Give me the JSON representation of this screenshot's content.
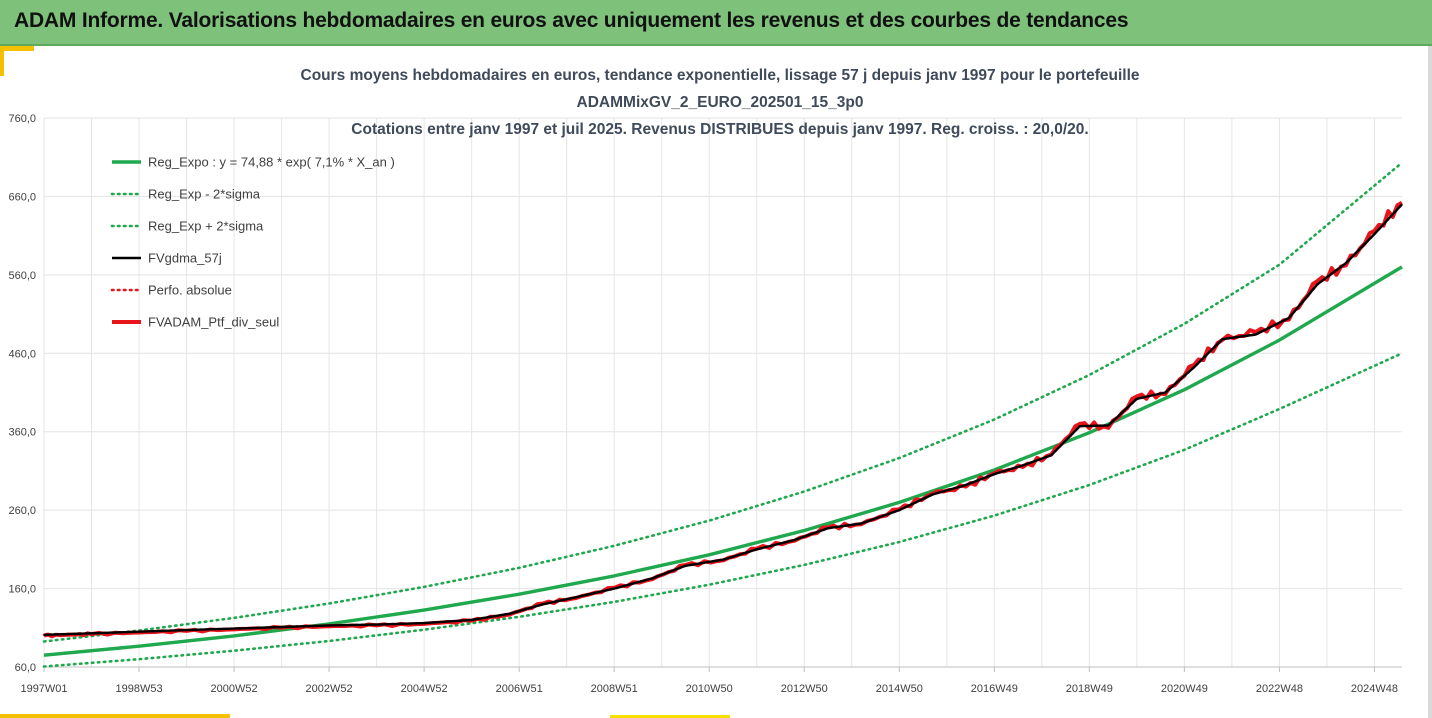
{
  "header": {
    "title": "ADAM Informe. Valorisations hebdomadaires en euros avec uniquement les revenus et des courbes de tendances"
  },
  "colors": {
    "banner": "#7dc17a",
    "accent": "#f5c000",
    "trend": "#1fa84d",
    "smooth": "#000000",
    "portfolio": "#e8141b",
    "grid": "#e3e3e3"
  },
  "chart_data": {
    "type": "line",
    "title_lines": [
      "Cours moyens hebdomadaires en euros, tendance exponentielle, lissage 57 j depuis janv 1997 pour le portefeuille",
      "ADAMMixGV_2_EURO_202501_15_3p0",
      "Cotations entre janv 1997 et juil 2025. Revenus DISTRIBUES depuis janv 1997. Reg. croiss. : 20,0/20."
    ],
    "xlabel": "",
    "ylabel": "",
    "x_range": [
      1997.0,
      2025.58
    ],
    "ylim": [
      60,
      760
    ],
    "y_ticks": [
      "60,0",
      "160,0",
      "260,0",
      "360,0",
      "460,0",
      "560,0",
      "660,0",
      "760,0"
    ],
    "x_ticks": [
      {
        "label": "1997W01",
        "x": 1997.0
      },
      {
        "label": "1998W53",
        "x": 1999.0
      },
      {
        "label": "2000W52",
        "x": 2001.0
      },
      {
        "label": "2002W52",
        "x": 2003.0
      },
      {
        "label": "2004W52",
        "x": 2005.0
      },
      {
        "label": "2006W51",
        "x": 2007.0
      },
      {
        "label": "2008W51",
        "x": 2009.0
      },
      {
        "label": "2010W50",
        "x": 2011.0
      },
      {
        "label": "2012W50",
        "x": 2013.0
      },
      {
        "label": "2014W50",
        "x": 2015.0
      },
      {
        "label": "2016W49",
        "x": 2017.0
      },
      {
        "label": "2018W49",
        "x": 2019.0
      },
      {
        "label": "2020W49",
        "x": 2021.0
      },
      {
        "label": "2022W48",
        "x": 2023.0
      },
      {
        "label": "2024W48",
        "x": 2025.0
      }
    ],
    "grid": true,
    "legend_position": "top-left",
    "series": [
      {
        "name": "Reg_Expo : y = 74,88 * exp( 7,1% *  X_an )",
        "style": "solid",
        "color": "#1fa84d",
        "x": [
          1997,
          1999,
          2001,
          2003,
          2005,
          2007,
          2009,
          2011,
          2013,
          2015,
          2017,
          2019,
          2021,
          2023,
          2025.58
        ],
        "values": [
          75,
          86.5,
          99.7,
          114.9,
          132.5,
          152.8,
          176.1,
          203.1,
          234.1,
          269.9,
          311.2,
          358.7,
          413.6,
          476.8,
          570.2
        ]
      },
      {
        "name": "Reg_Exp - 2*sigma",
        "style": "dotted",
        "color": "#1fa84d",
        "x": [
          1997,
          1999,
          2001,
          2003,
          2005,
          2007,
          2009,
          2011,
          2013,
          2015,
          2017,
          2019,
          2021,
          2023,
          2025.58
        ],
        "values": [
          60.6,
          70,
          80.8,
          93.2,
          107.5,
          124,
          143,
          164.9,
          190.2,
          219.4,
          253.1,
          292,
          337,
          389,
          460
        ]
      },
      {
        "name": "Reg_Exp + 2*sigma",
        "style": "dotted",
        "color": "#1fa84d",
        "x": [
          1997,
          1999,
          2001,
          2003,
          2005,
          2007,
          2009,
          2011,
          2013,
          2015,
          2017,
          2019,
          2021,
          2023,
          2025.58
        ],
        "values": [
          92.5,
          106.6,
          122.6,
          141,
          162.1,
          186.5,
          214.5,
          246.7,
          283.8,
          326.5,
          375.6,
          432.3,
          497.6,
          573,
          703
        ]
      },
      {
        "name": "FVgdma_57j",
        "style": "solid-thin",
        "color": "#000000",
        "x": [
          1997,
          1998,
          1999,
          2000,
          2001,
          2002,
          2003,
          2004,
          2005,
          2006,
          2006.8,
          2007.5,
          2008.2,
          2009,
          2009.8,
          2010.5,
          2011.3,
          2012,
          2012.8,
          2013.5,
          2014.2,
          2015,
          2015.7,
          2016.4,
          2017,
          2017.6,
          2018.2,
          2018.8,
          2019.4,
          2020,
          2020.6,
          2021.2,
          2021.8,
          2022.5,
          2023.2,
          2023.8,
          2024.4,
          2025,
          2025.58
        ],
        "values": [
          101,
          103,
          105,
          107,
          109,
          111,
          113,
          114,
          116,
          120,
          128,
          140,
          149,
          160,
          173,
          189,
          197,
          210,
          222,
          237,
          243,
          260,
          280,
          292,
          306,
          317,
          330,
          367,
          368,
          402,
          410,
          442,
          478,
          484,
          505,
          548,
          575,
          612,
          650
        ]
      },
      {
        "name": "Perfo. absolue",
        "style": "dotted",
        "color": "#e8141b",
        "x": [
          1997,
          1998,
          1999,
          2000,
          2001,
          2002,
          2003,
          2004,
          2005,
          2006,
          2006.8,
          2007.5,
          2008.2,
          2009,
          2009.8,
          2010.5,
          2011.3,
          2012,
          2012.8,
          2013.5,
          2014.2,
          2015,
          2015.7,
          2016.4,
          2017,
          2017.6,
          2018.2,
          2018.8,
          2019.4,
          2020,
          2020.6,
          2021.2,
          2021.8,
          2022.5,
          2023.2,
          2023.8,
          2024.4,
          2025,
          2025.58
        ],
        "values": [
          101,
          103,
          105,
          107,
          109,
          111,
          113,
          114,
          116,
          120,
          128,
          140,
          149,
          160,
          173,
          189,
          197,
          210,
          222,
          237,
          243,
          260,
          280,
          292,
          306,
          317,
          330,
          367,
          368,
          402,
          410,
          442,
          478,
          484,
          505,
          548,
          575,
          612,
          650
        ]
      },
      {
        "name": "FVADAM_Ptf_div_seul",
        "style": "solid-thick",
        "color": "#e8141b",
        "x": [
          1997,
          1997.5,
          1998,
          1999,
          2000,
          2001,
          2002,
          2003,
          2004,
          2005,
          2006,
          2006.8,
          2007.5,
          2008.2,
          2009,
          2009.8,
          2010.5,
          2011.3,
          2012,
          2012.8,
          2013.5,
          2014.2,
          2015,
          2015.7,
          2016.4,
          2017,
          2017.6,
          2018.2,
          2018.8,
          2019.4,
          2020,
          2020.6,
          2021.2,
          2021.8,
          2022.5,
          2023.2,
          2023.8,
          2024.4,
          2025,
          2025.58
        ],
        "values": [
          100,
          101,
          102,
          104,
          106,
          108,
          110,
          112,
          113,
          115,
          119,
          127,
          141,
          148,
          161,
          172,
          190,
          196,
          211,
          221,
          238,
          242,
          261,
          281,
          290,
          307,
          315,
          331,
          370,
          365,
          405,
          408,
          445,
          477,
          487,
          503,
          552,
          572,
          616,
          652
        ]
      }
    ]
  }
}
